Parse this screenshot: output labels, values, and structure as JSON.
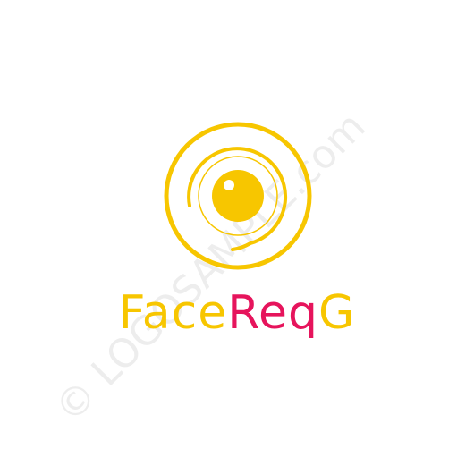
{
  "watermark": {
    "text": "© LOGOSAMPLE.com"
  },
  "brand": {
    "part1": "Face",
    "part2": "Req",
    "part3": "G"
  },
  "colors": {
    "primary": "#f7c600",
    "accent": "#e6145c",
    "watermark": "#ededed"
  }
}
